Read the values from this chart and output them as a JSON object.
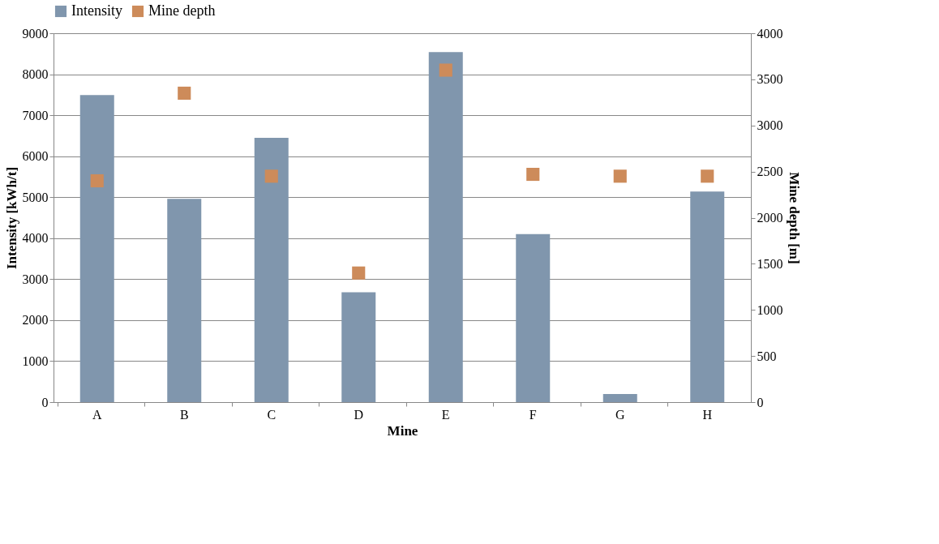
{
  "chart_data": {
    "type": "bar",
    "xlabel": "Mine",
    "ylabel": "Intensity [kWh/t]",
    "y2label": "Mine depth [m]",
    "categories": [
      "A",
      "B",
      "C",
      "D",
      "E",
      "F",
      "G",
      "H"
    ],
    "series": [
      {
        "name": "Intensity",
        "color": "#8096ad",
        "values": [
          7490,
          4960,
          6450,
          2680,
          8540,
          4100,
          200,
          5140
        ]
      },
      {
        "name": "Mine depth",
        "type": "scatter",
        "axis": "y2",
        "marker": "square",
        "color": "#cd8b5a",
        "values": [
          2400,
          3350,
          2450,
          1400,
          3600,
          2470,
          2450,
          2450
        ]
      }
    ],
    "ylim": [
      0,
      9000
    ],
    "yticks": [
      0,
      1000,
      2000,
      3000,
      4000,
      5000,
      6000,
      7000,
      8000,
      9000
    ],
    "y2lim": [
      0,
      4000
    ],
    "y2ticks": [
      0,
      500,
      1000,
      1500,
      2000,
      2500,
      3000,
      3500,
      4000
    ],
    "grid": "y",
    "legend": "top"
  }
}
